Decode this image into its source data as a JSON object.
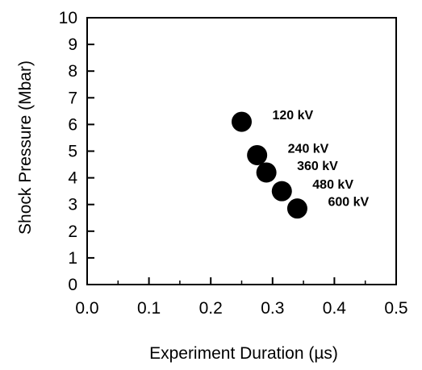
{
  "chart_data": {
    "type": "scatter",
    "title": "",
    "xlabel": "Experiment Duration (µs)",
    "ylabel": "Shock Pressure (Mbar)",
    "xlim": [
      0.0,
      0.5
    ],
    "ylim": [
      0,
      10
    ],
    "x_ticks": [
      "0.0",
      "0.1",
      "0.2",
      "0.3",
      "0.4",
      "0.5"
    ],
    "y_ticks": [
      "0",
      "1",
      "2",
      "3",
      "4",
      "5",
      "6",
      "7",
      "8",
      "9",
      "10"
    ],
    "grid": false,
    "marker_color": "#000000",
    "points": [
      {
        "x": 0.25,
        "y": 6.1,
        "label": "120 kV"
      },
      {
        "x": 0.275,
        "y": 4.85,
        "label": "240 kV"
      },
      {
        "x": 0.29,
        "y": 4.2,
        "label": "360 kV"
      },
      {
        "x": 0.315,
        "y": 3.5,
        "label": "480 kV"
      },
      {
        "x": 0.34,
        "y": 2.85,
        "label": "600 kV"
      }
    ]
  }
}
